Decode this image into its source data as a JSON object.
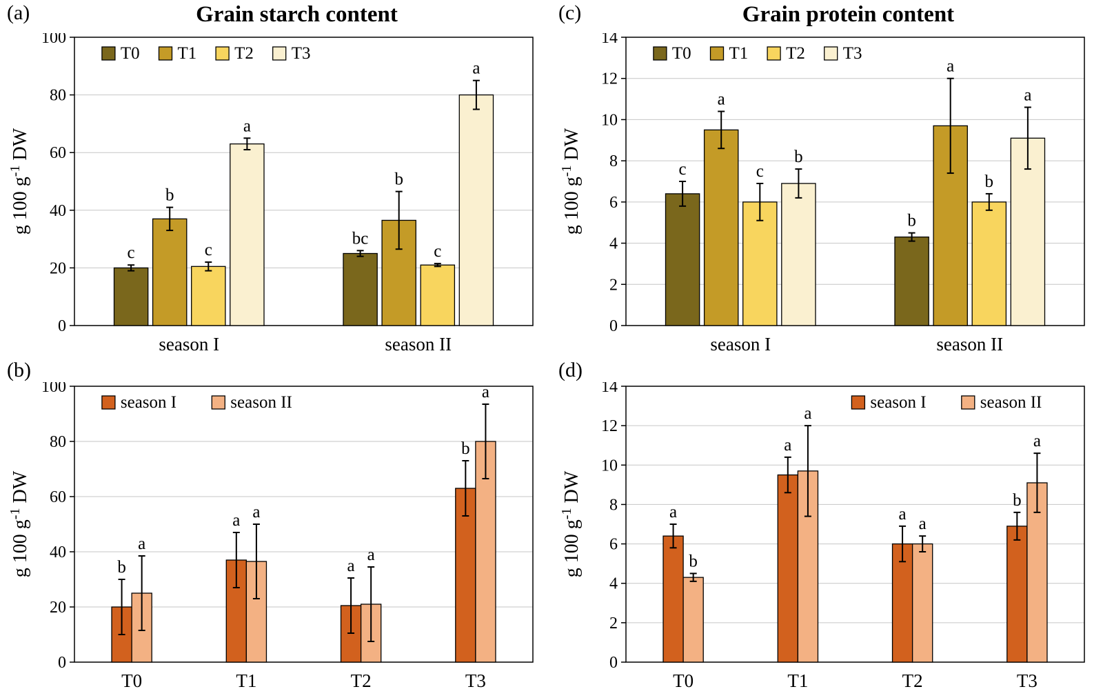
{
  "figure": {
    "background": "#ffffff",
    "grid_color": "#c6c6c6",
    "axis_color": "#000000"
  },
  "chart_data": [
    {
      "panel_label": "(a)",
      "type": "bar",
      "title": "Grain starch content",
      "ylabel": "g 100 g⁻¹ DW",
      "ylim": [
        0,
        100
      ],
      "ytick_step": 20,
      "grid": true,
      "legend_position": "top-left",
      "categories": [
        "season I",
        "season II"
      ],
      "series": [
        {
          "name": "T0",
          "color": "#7a671c",
          "values": [
            20,
            25
          ],
          "errors": [
            1,
            1
          ],
          "sig_labels": [
            "c",
            "bc"
          ]
        },
        {
          "name": "T1",
          "color": "#c49b27",
          "values": [
            37,
            36.5
          ],
          "errors": [
            4,
            10
          ],
          "sig_labels": [
            "b",
            "b"
          ]
        },
        {
          "name": "T2",
          "color": "#f8d55e",
          "values": [
            20.5,
            21
          ],
          "errors": [
            1.5,
            0.5
          ],
          "sig_labels": [
            "c",
            "c"
          ]
        },
        {
          "name": "T3",
          "color": "#faf0d0",
          "values": [
            63,
            80
          ],
          "errors": [
            2,
            5
          ],
          "sig_labels": [
            "a",
            "a"
          ]
        }
      ]
    },
    {
      "panel_label": "(c)",
      "type": "bar",
      "title": "Grain protein content",
      "ylabel": "g 100 g⁻¹ DW",
      "ylim": [
        0,
        14
      ],
      "ytick_step": 2,
      "grid": true,
      "legend_position": "top-left",
      "categories": [
        "season I",
        "season II"
      ],
      "series": [
        {
          "name": "T0",
          "color": "#7a671c",
          "values": [
            6.4,
            4.3
          ],
          "errors": [
            0.6,
            0.2
          ],
          "sig_labels": [
            "c",
            "b"
          ]
        },
        {
          "name": "T1",
          "color": "#c49b27",
          "values": [
            9.5,
            9.7
          ],
          "errors": [
            0.9,
            2.3
          ],
          "sig_labels": [
            "a",
            "a"
          ]
        },
        {
          "name": "T2",
          "color": "#f8d55e",
          "values": [
            6.0,
            6.0
          ],
          "errors": [
            0.9,
            0.4
          ],
          "sig_labels": [
            "c",
            "b"
          ]
        },
        {
          "name": "T3",
          "color": "#faf0d0",
          "values": [
            6.9,
            9.1
          ],
          "errors": [
            0.7,
            1.5
          ],
          "sig_labels": [
            "b",
            "a"
          ]
        }
      ]
    },
    {
      "panel_label": "(b)",
      "type": "bar",
      "title": "",
      "ylabel": "g 100 g⁻¹ DW",
      "ylim": [
        0,
        100
      ],
      "ytick_step": 20,
      "grid": true,
      "legend_position": "top-left",
      "categories": [
        "T0",
        "T1",
        "T2",
        "T3"
      ],
      "series": [
        {
          "name": "season I",
          "color": "#d2611e",
          "values": [
            20,
            37,
            20.5,
            63
          ],
          "errors": [
            10,
            10,
            10,
            10
          ],
          "sig_labels": [
            "b",
            "a",
            "a",
            "b"
          ]
        },
        {
          "name": "season II",
          "color": "#f3b183",
          "values": [
            25,
            36.5,
            21,
            80
          ],
          "errors": [
            13.5,
            13.5,
            13.5,
            13.5
          ],
          "sig_labels": [
            "a",
            "a",
            "a",
            "a"
          ]
        }
      ]
    },
    {
      "panel_label": "(d)",
      "type": "bar",
      "title": "",
      "ylabel": "g 100 g⁻¹ DW",
      "ylim": [
        0,
        14
      ],
      "ytick_step": 2,
      "grid": true,
      "legend_position": "top-right",
      "categories": [
        "T0",
        "T1",
        "T2",
        "T3"
      ],
      "series": [
        {
          "name": "season I",
          "color": "#d2611e",
          "values": [
            6.4,
            9.5,
            6.0,
            6.9
          ],
          "errors": [
            0.6,
            0.9,
            0.9,
            0.7
          ],
          "sig_labels": [
            "a",
            "a",
            "a",
            "b"
          ]
        },
        {
          "name": "season II",
          "color": "#f3b183",
          "values": [
            4.3,
            9.7,
            6.0,
            9.1
          ],
          "errors": [
            0.2,
            2.3,
            0.4,
            1.5
          ],
          "sig_labels": [
            "b",
            "a",
            "a",
            "a"
          ]
        }
      ]
    }
  ]
}
